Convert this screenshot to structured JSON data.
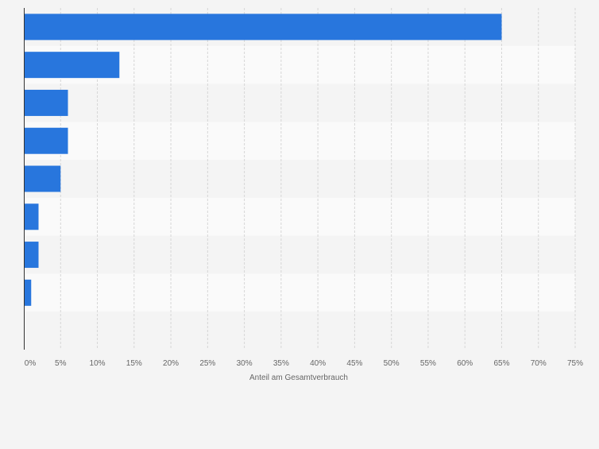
{
  "chart_data": {
    "type": "bar",
    "orientation": "horizontal",
    "categories": [
      "",
      "",
      "",
      "",
      "",
      "",
      "",
      "",
      ""
    ],
    "values": [
      65,
      13,
      6,
      6,
      5,
      2,
      2,
      1,
      null
    ],
    "xlabel": "Anteil am Gesamtverbrauch",
    "ylabel": "",
    "xlim": [
      0,
      75
    ],
    "x_tick_labels": [
      "0%",
      "5%",
      "10%",
      "15%",
      "20%",
      "25%",
      "30%",
      "35%",
      "40%",
      "45%",
      "50%",
      "55%",
      "60%",
      "65%",
      "70%",
      "75%"
    ],
    "grid": true,
    "bar_color": "#2876dd",
    "band_colors": [
      "#f4f4f4",
      "#fafafa"
    ],
    "legend": "none"
  }
}
